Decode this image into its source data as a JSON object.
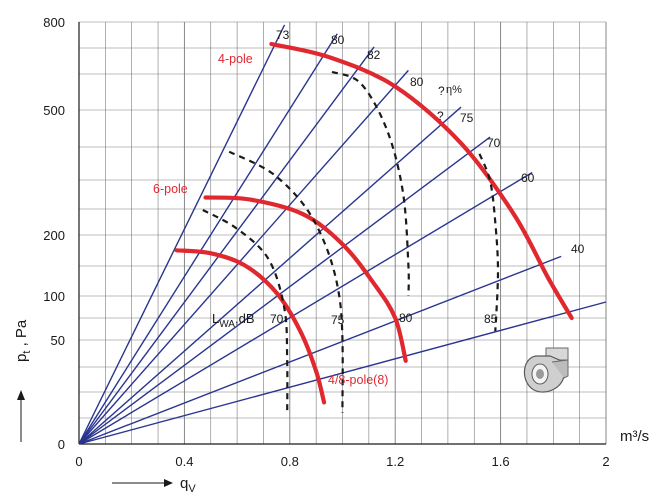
{
  "chart_data": {
    "type": "line",
    "title": "",
    "xlabel": "q_v",
    "xlabel_main": "q",
    "xlabel_sub": "V",
    "ylabel": "p_t , Pa",
    "ylabel_main": "p",
    "ylabel_sub": "t",
    "ylabel_rest": " , Pa",
    "x_unit": "m³/s",
    "xlim": [
      0,
      2
    ],
    "x_ticks": [
      "0",
      "0.4",
      "0.8",
      "1.2",
      "1.6",
      "2"
    ],
    "x_tick_values": [
      0,
      0.4,
      0.8,
      1.2,
      1.6,
      2
    ],
    "y_ticks": [
      "0",
      "50",
      "100",
      "200",
      "500",
      "800"
    ],
    "y_tick_values": [
      0,
      50,
      100,
      200,
      500,
      800
    ],
    "y_scale": "nonlinear (pressure scale)",
    "grid": true,
    "motor_curves": [
      {
        "name": "4-pole",
        "points": [
          [
            0.73,
            725
          ],
          [
            0.95,
            680
          ],
          [
            1.2,
            580
          ],
          [
            1.45,
            420
          ],
          [
            1.65,
            250
          ],
          [
            1.78,
            130
          ],
          [
            1.87,
            75
          ]
        ]
      },
      {
        "name": "6-pole",
        "points": [
          [
            0.48,
            290
          ],
          [
            0.65,
            285
          ],
          [
            0.85,
            250
          ],
          [
            1.0,
            185
          ],
          [
            1.12,
            120
          ],
          [
            1.2,
            75
          ],
          [
            1.24,
            40
          ]
        ]
      },
      {
        "name": "4/8-pole(8)",
        "points": [
          [
            0.37,
            175
          ],
          [
            0.5,
            170
          ],
          [
            0.63,
            150
          ],
          [
            0.75,
            105
          ],
          [
            0.84,
            60
          ],
          [
            0.9,
            35
          ],
          [
            0.93,
            20
          ]
        ]
      }
    ],
    "efficiency_lines": {
      "label": "η%",
      "values": [
        "73",
        "80",
        "82",
        "80",
        "75",
        "70",
        "60",
        "40"
      ],
      "end_points": [
        [
          0.78,
          790
        ],
        [
          0.98,
          760
        ],
        [
          1.12,
          715
        ],
        [
          1.25,
          635
        ],
        [
          1.45,
          510
        ],
        [
          1.56,
          435
        ],
        [
          1.72,
          350
        ],
        [
          1.83,
          165
        ]
      ]
    },
    "sound_level_curves": {
      "label_main": "L",
      "label_sub": "WA",
      "label_rest": ",dB",
      "values": [
        "70",
        "75",
        "80",
        "85"
      ],
      "curves": [
        [
          [
            0.47,
            260
          ],
          [
            0.6,
            215
          ],
          [
            0.72,
            160
          ],
          [
            0.78,
            85
          ],
          [
            0.79,
            40
          ],
          [
            0.79,
            15
          ]
        ],
        [
          [
            0.57,
            400
          ],
          [
            0.75,
            340
          ],
          [
            0.9,
            225
          ],
          [
            0.99,
            95
          ],
          [
            1.0,
            15
          ]
        ],
        [
          [
            0.96,
            630
          ],
          [
            1.07,
            590
          ],
          [
            1.17,
            450
          ],
          [
            1.23,
            300
          ],
          [
            1.25,
            150
          ],
          [
            1.25,
            100
          ]
        ],
        [
          [
            1.52,
            395
          ],
          [
            1.56,
            330
          ],
          [
            1.58,
            230
          ],
          [
            1.59,
            140
          ],
          [
            1.58,
            60
          ]
        ]
      ]
    },
    "question_marks": [
      "?",
      "?"
    ],
    "symbol": "η%"
  },
  "colors": {
    "motor_curve": "#e0282f",
    "efficiency_line": "#2a3590",
    "sound_curve": "#1a1a1a",
    "grid": "#7a7a7a"
  },
  "icon": "centrifugal-fan-icon"
}
